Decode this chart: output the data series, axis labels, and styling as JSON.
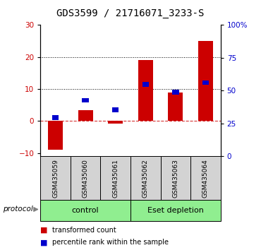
{
  "title": "GDS3599 / 21716071_3233-S",
  "samples": [
    "GSM435059",
    "GSM435060",
    "GSM435061",
    "GSM435062",
    "GSM435063",
    "GSM435064"
  ],
  "red_bars": [
    -9.0,
    3.5,
    -0.8,
    19.0,
    9.0,
    25.0
  ],
  "blue_squares_left": [
    1.0,
    6.5,
    3.5,
    11.5,
    9.0,
    12.0
  ],
  "ylim_left": [
    -11,
    30
  ],
  "ylim_right": [
    0,
    100
  ],
  "left_yticks": [
    -10,
    0,
    10,
    20,
    30
  ],
  "right_yticks": [
    0,
    25,
    50,
    75,
    100
  ],
  "right_yticklabels": [
    "0",
    "25",
    "50",
    "75",
    "100%"
  ],
  "hlines": [
    10,
    20
  ],
  "groups": [
    {
      "label": "control",
      "start": 0,
      "end": 3,
      "color": "#90EE90"
    },
    {
      "label": "Eset depletion",
      "start": 3,
      "end": 6,
      "color": "#90EE90"
    }
  ],
  "protocol_label": "protocol",
  "red_color": "#CC0000",
  "blue_color": "#0000CC",
  "bar_width": 0.5,
  "legend_red": "transformed count",
  "legend_blue": "percentile rank within the sample",
  "title_fontsize": 10,
  "tick_fontsize": 7.5,
  "group_bg": "#D3D3D3",
  "group_label_bg": "#90EE90"
}
